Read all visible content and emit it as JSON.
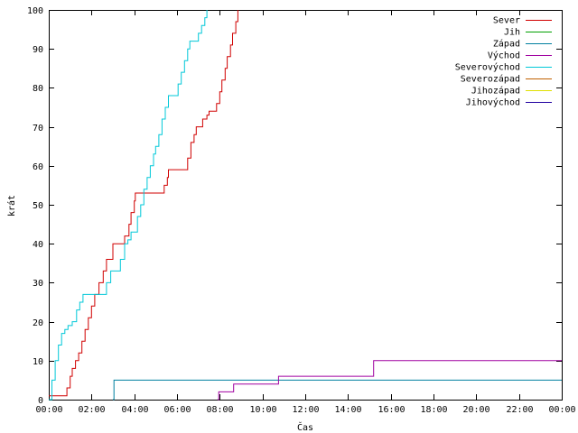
{
  "chart_data": {
    "type": "line",
    "title": "",
    "xlabel": "Čas",
    "ylabel": "krát",
    "xlim": [
      0,
      24
    ],
    "ylim": [
      0,
      100
    ],
    "x_tick_labels": [
      "00:00",
      "02:00",
      "04:00",
      "06:00",
      "08:00",
      "10:00",
      "12:00",
      "14:00",
      "16:00",
      "18:00",
      "20:00",
      "22:00",
      "00:00"
    ],
    "y_tick_labels": [
      "0",
      "10",
      "20",
      "30",
      "40",
      "50",
      "60",
      "70",
      "80",
      "90",
      "100"
    ],
    "grid": false,
    "legend_position": "top-right",
    "series": [
      {
        "name": "Sever",
        "color": "#d00000",
        "points": [
          [
            0,
            1
          ],
          [
            0.8,
            1
          ],
          [
            0.85,
            3
          ],
          [
            1.0,
            6
          ],
          [
            1.1,
            8
          ],
          [
            1.25,
            10
          ],
          [
            1.4,
            12
          ],
          [
            1.55,
            15
          ],
          [
            1.7,
            18
          ],
          [
            1.85,
            21
          ],
          [
            2.0,
            24
          ],
          [
            2.15,
            27
          ],
          [
            2.35,
            30
          ],
          [
            2.55,
            33
          ],
          [
            2.7,
            36
          ],
          [
            2.95,
            36
          ],
          [
            3.0,
            40
          ],
          [
            3.5,
            40
          ],
          [
            3.55,
            42
          ],
          [
            3.75,
            45
          ],
          [
            3.85,
            48
          ],
          [
            4.0,
            51
          ],
          [
            4.05,
            53
          ],
          [
            5.3,
            53
          ],
          [
            5.4,
            55
          ],
          [
            5.55,
            57
          ],
          [
            5.6,
            59
          ],
          [
            6.4,
            59
          ],
          [
            6.5,
            62
          ],
          [
            6.65,
            66
          ],
          [
            6.8,
            68
          ],
          [
            6.9,
            70
          ],
          [
            7.1,
            70
          ],
          [
            7.2,
            72
          ],
          [
            7.4,
            73
          ],
          [
            7.5,
            74
          ],
          [
            7.75,
            74
          ],
          [
            7.85,
            76
          ],
          [
            8.0,
            79
          ],
          [
            8.1,
            82
          ],
          [
            8.25,
            85
          ],
          [
            8.35,
            88
          ],
          [
            8.5,
            91
          ],
          [
            8.6,
            94
          ],
          [
            8.75,
            97
          ],
          [
            8.85,
            100
          ]
        ]
      },
      {
        "name": "Jih",
        "color": "#00a000",
        "points": []
      },
      {
        "name": "Západ",
        "color": "#0080a0",
        "points": [
          [
            3.0,
            0
          ],
          [
            3.05,
            5
          ],
          [
            24,
            5
          ]
        ]
      },
      {
        "name": "Východ",
        "color": "#a000a0",
        "points": [
          [
            7.9,
            0
          ],
          [
            7.95,
            2
          ],
          [
            8.6,
            2
          ],
          [
            8.65,
            4
          ],
          [
            10.7,
            4
          ],
          [
            10.75,
            6
          ],
          [
            15.15,
            6
          ],
          [
            15.2,
            10
          ],
          [
            24,
            10
          ]
        ]
      },
      {
        "name": "Severovýchod",
        "color": "#00c8d8",
        "points": [
          [
            0,
            0
          ],
          [
            0.15,
            5
          ],
          [
            0.3,
            10
          ],
          [
            0.45,
            14
          ],
          [
            0.6,
            17
          ],
          [
            0.75,
            18
          ],
          [
            0.9,
            19
          ],
          [
            1.1,
            20
          ],
          [
            1.3,
            23
          ],
          [
            1.45,
            25
          ],
          [
            1.6,
            27
          ],
          [
            2.6,
            27
          ],
          [
            2.7,
            30
          ],
          [
            2.9,
            33
          ],
          [
            3.2,
            33
          ],
          [
            3.35,
            36
          ],
          [
            3.55,
            40
          ],
          [
            3.7,
            41
          ],
          [
            3.85,
            43
          ],
          [
            4.0,
            43
          ],
          [
            4.15,
            47
          ],
          [
            4.3,
            50
          ],
          [
            4.45,
            54
          ],
          [
            4.6,
            57
          ],
          [
            4.75,
            60
          ],
          [
            4.9,
            63
          ],
          [
            5.0,
            65
          ],
          [
            5.15,
            68
          ],
          [
            5.3,
            72
          ],
          [
            5.45,
            75
          ],
          [
            5.6,
            78
          ],
          [
            5.9,
            78
          ],
          [
            6.05,
            81
          ],
          [
            6.2,
            84
          ],
          [
            6.35,
            87
          ],
          [
            6.5,
            90
          ],
          [
            6.6,
            92
          ],
          [
            6.9,
            92
          ],
          [
            7.0,
            94
          ],
          [
            7.15,
            96
          ],
          [
            7.3,
            98
          ],
          [
            7.4,
            100
          ]
        ]
      },
      {
        "name": "Severozápad",
        "color": "#c06000",
        "points": []
      },
      {
        "name": "Jihozápad",
        "color": "#e0e000",
        "points": []
      },
      {
        "name": "Jihovýchod",
        "color": "#2000a0",
        "points": []
      }
    ]
  }
}
